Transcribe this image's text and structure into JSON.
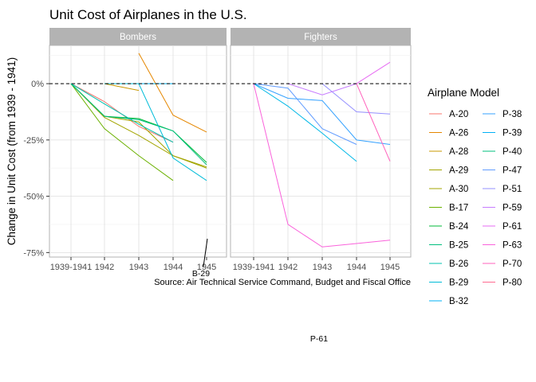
{
  "chart_data": {
    "type": "line",
    "title": "Unit Cost of Airplanes in the U.S.",
    "ylabel": "Change in Unit Cost (from 1939 - 1941)",
    "xlabel": "",
    "caption": "Source: Air Technical Service Command, Budget and Fiscal Office",
    "x_categories": [
      "1939-1941",
      "1942",
      "1943",
      "1944",
      "1945"
    ],
    "ylim": [
      -0.77,
      0.17
    ],
    "y_ticks": [
      0,
      -0.25,
      -0.5,
      -0.75
    ],
    "y_tick_labels": [
      "0%",
      "-25%",
      "-50%",
      "-75%"
    ],
    "reference_line": 0,
    "grid": true,
    "legend_title": "Airplane Model",
    "legend_position": "right",
    "facets": [
      {
        "name": "Bombers",
        "series": [
          {
            "name": "A-20",
            "color": "#F8766D",
            "values": [
              0,
              -0.08,
              -0.19,
              -0.26,
              null
            ]
          },
          {
            "name": "A-26",
            "color": "#E58700",
            "values": [
              0,
              null,
              0.135,
              -0.14,
              -0.215
            ]
          },
          {
            "name": "A-28",
            "color": "#C99800",
            "values": [
              null,
              0,
              -0.03,
              null,
              null
            ]
          },
          {
            "name": "A-29",
            "color": "#A3A500",
            "values": [
              0,
              -0.15,
              -0.23,
              -0.32,
              -0.375
            ]
          },
          {
            "name": "A-30",
            "color": "#A3A500",
            "values": [
              0,
              -0.145,
              -0.17,
              -0.32,
              -0.37
            ]
          },
          {
            "name": "B-17",
            "color": "#6BB100",
            "values": [
              0,
              -0.2,
              -0.32,
              -0.43,
              null
            ]
          },
          {
            "name": "B-24",
            "color": "#00BA38",
            "values": [
              0,
              -0.145,
              -0.155,
              -0.21,
              -0.35
            ]
          },
          {
            "name": "B-25",
            "color": "#00BF7D",
            "values": [
              0,
              -0.145,
              -0.16,
              -0.21,
              -0.36
            ]
          },
          {
            "name": "B-26",
            "color": "#00C0AF",
            "values": [
              0,
              -0.09,
              -0.18,
              -0.26,
              null
            ]
          },
          {
            "name": "B-29",
            "color": "#00BCD8",
            "values": [
              null,
              0,
              0,
              -0.33,
              -0.43
            ]
          },
          {
            "name": "B-32",
            "color": "#00B0F6",
            "values": [
              null,
              null,
              0,
              0,
              null
            ]
          }
        ],
        "annotations": [
          {
            "text": "B-29"
          }
        ]
      },
      {
        "name": "Fighters",
        "series": [
          {
            "name": "P-38",
            "color": "#35A2FF",
            "values": [
              0,
              -0.065,
              -0.075,
              -0.25,
              -0.27
            ]
          },
          {
            "name": "P-39",
            "color": "#619CFF",
            "values": [
              0,
              -0.02,
              -0.2,
              -0.27,
              null
            ]
          },
          {
            "name": "P-40",
            "color": "#00B8E7",
            "values": [
              0,
              -0.1,
              -0.22,
              -0.345,
              null
            ]
          },
          {
            "name": "P-47",
            "color": "#9590FF",
            "values": [
              null,
              null,
              0,
              -0.125,
              -0.135
            ]
          },
          {
            "name": "P-51",
            "color": "#C77CFF",
            "values": [
              null,
              0,
              -0.05,
              0,
              null
            ]
          },
          {
            "name": "P-59",
            "color": "#E76BF3",
            "values": [
              null,
              null,
              null,
              0,
              0.095
            ]
          },
          {
            "name": "P-61",
            "color": "#FA62DB",
            "values": [
              0,
              -0.625,
              -0.725,
              -0.71,
              -0.695
            ]
          },
          {
            "name": "P-63",
            "color": "#FF62BC",
            "values": [
              null,
              null,
              null,
              0,
              -0.345
            ]
          },
          {
            "name": "P-70",
            "color": "#FF6C91",
            "values": [
              null,
              null,
              null,
              null,
              null
            ]
          },
          {
            "name": "P-80",
            "color": "#FF6C91",
            "values": [
              null,
              null,
              null,
              null,
              null
            ]
          }
        ],
        "annotations": [
          {
            "text": "P-61"
          }
        ]
      }
    ],
    "legend_col1": [
      {
        "name": "A-20",
        "color": "#F8766D"
      },
      {
        "name": "A-26",
        "color": "#E58700"
      },
      {
        "name": "A-28",
        "color": "#C99800"
      },
      {
        "name": "A-29",
        "color": "#A3A500"
      },
      {
        "name": "A-30",
        "color": "#A3A500"
      },
      {
        "name": "B-17",
        "color": "#6BB100"
      },
      {
        "name": "B-24",
        "color": "#00BA38"
      },
      {
        "name": "B-25",
        "color": "#00BF7D"
      },
      {
        "name": "B-26",
        "color": "#00C0AF"
      },
      {
        "name": "B-29",
        "color": "#00BCD8"
      },
      {
        "name": "B-32",
        "color": "#00B0F6"
      }
    ],
    "legend_col2": [
      {
        "name": "P-38",
        "color": "#35A2FF"
      },
      {
        "name": "P-39",
        "color": "#00B0F6"
      },
      {
        "name": "P-40",
        "color": "#00BF7D"
      },
      {
        "name": "P-47",
        "color": "#619CFF"
      },
      {
        "name": "P-51",
        "color": "#9590FF"
      },
      {
        "name": "P-59",
        "color": "#C77CFF"
      },
      {
        "name": "P-61",
        "color": "#E76BF3"
      },
      {
        "name": "P-63",
        "color": "#FA62DB"
      },
      {
        "name": "P-70",
        "color": "#FF62BC"
      },
      {
        "name": "P-80",
        "color": "#FF6C91"
      }
    ]
  }
}
